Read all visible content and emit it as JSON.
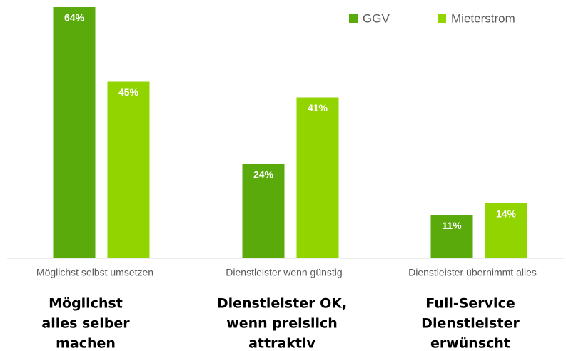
{
  "chart_data": {
    "type": "bar",
    "categories": [
      "Möglichst selbst umsetzen",
      "Dienstleister wenn günstig",
      "Dienstleister übernimmt alles"
    ],
    "series": [
      {
        "name": "GGV",
        "color": "#5aaa0c",
        "values": [
          64,
          24,
          11
        ],
        "value_labels": [
          "64%",
          "24%",
          "11%"
        ]
      },
      {
        "name": "Mieterstrom",
        "color": "#92d400",
        "values": [
          45,
          41,
          14
        ],
        "value_labels": [
          "45%",
          "41%",
          "14%"
        ]
      }
    ],
    "ylim": [
      0,
      64
    ],
    "legend": "top-right",
    "annotations": [
      [
        "Möglichst",
        "alles selber",
        "machen"
      ],
      [
        "Dienstleister OK,",
        "wenn preislich",
        "attraktiv"
      ],
      [
        "Full-Service",
        "Dienstleister",
        "erwünscht"
      ]
    ]
  }
}
